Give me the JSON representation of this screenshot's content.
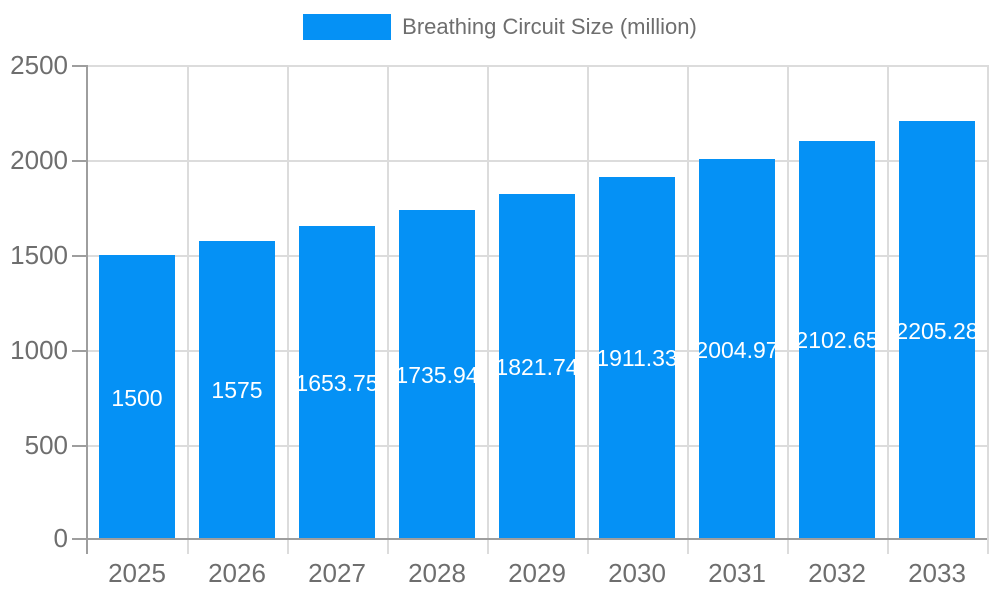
{
  "legend": {
    "label": "Breathing Circuit Size (million)"
  },
  "colors": {
    "bar": "#0591F5",
    "grid": "#dcdcdc",
    "axis": "#9e9e9e",
    "tick_text": "#6e6e6e",
    "value_label_text": "#ffffff",
    "background": "#ffffff"
  },
  "chart_data": {
    "type": "bar",
    "title": "Breathing Circuit Size (million)",
    "legend_position": "top",
    "grid": true,
    "categories": [
      "2025",
      "2026",
      "2027",
      "2028",
      "2029",
      "2030",
      "2031",
      "2032",
      "2033"
    ],
    "values": [
      1500,
      1575,
      1653.75,
      1735.94,
      1821.74,
      1911.33,
      2004.97,
      2102.65,
      2205.28
    ],
    "value_labels": [
      "1500",
      "1575",
      "1653.75",
      "1735.94",
      "1821.74",
      "1911.33",
      "2004.97",
      "2102.65",
      "2205.28"
    ],
    "xlabel": "",
    "ylabel": "",
    "ylim": [
      0,
      2500
    ],
    "yticks": [
      0,
      500,
      1000,
      1500,
      2000,
      2500
    ],
    "ytick_labels": [
      "0",
      "500",
      "1000",
      "1500",
      "2000",
      "2500"
    ]
  }
}
